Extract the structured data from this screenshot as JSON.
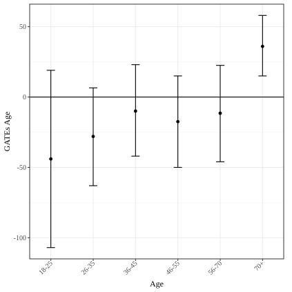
{
  "chart_data": {
    "type": "errorbar",
    "xlabel": "Age",
    "ylabel": "GATEs Age",
    "categories": [
      "18-25",
      "26-35",
      "36-45",
      "46-55",
      "56-70",
      "70+"
    ],
    "estimates": [
      -44,
      -28,
      -10,
      -17.5,
      -11.5,
      36
    ],
    "lower": [
      -107,
      -63,
      -42,
      -50,
      -46,
      15
    ],
    "upper": [
      19,
      6.5,
      23,
      15,
      22.5,
      58
    ],
    "ylim": [
      -115,
      66
    ],
    "y_ticks": [
      -100,
      -50,
      0,
      50
    ],
    "reference_line": 0,
    "grid": true,
    "colors": {
      "marks": "#000000",
      "grid": "#ebebeb",
      "panel_border": "#333333"
    }
  }
}
